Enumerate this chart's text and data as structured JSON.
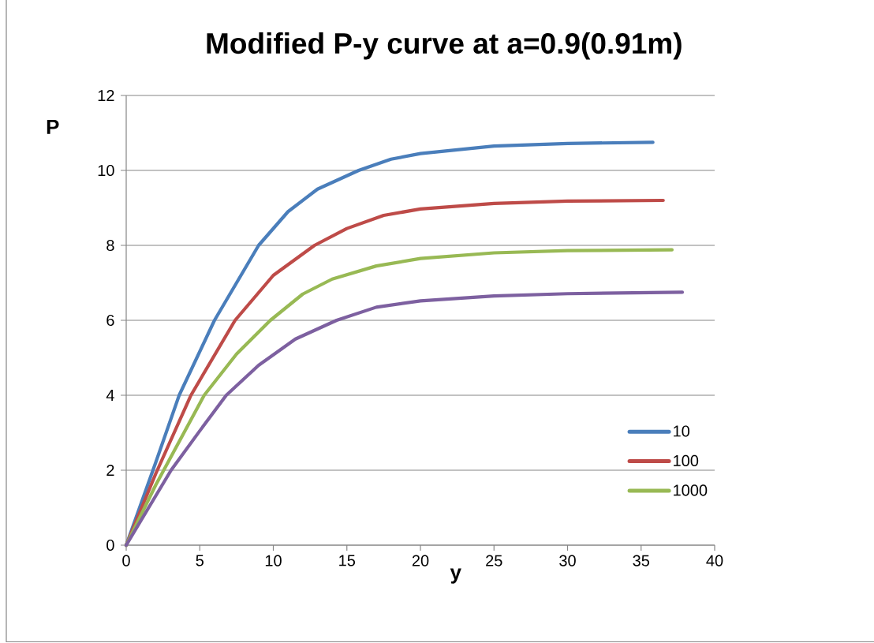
{
  "chart_data": {
    "type": "line",
    "title": "Modified P-y curve at a=0.9(0.91m)",
    "xlabel": "y",
    "ylabel": "P",
    "xlim": [
      0,
      40
    ],
    "xticks": [
      0,
      5,
      10,
      15,
      20,
      25,
      30,
      35,
      40
    ],
    "ylim": [
      0,
      12
    ],
    "yticks": [
      0,
      2,
      4,
      6,
      8,
      10,
      12
    ],
    "grid": "y",
    "legend": "bottom right",
    "marker": "none",
    "line_style": "solid",
    "series": [
      {
        "name": "10",
        "color": "#4a7ebb",
        "x": [
          0,
          2,
          3.6,
          6,
          9,
          11,
          13,
          15.8,
          18,
          20,
          25,
          30,
          35.8
        ],
        "values": [
          0,
          2.2,
          4,
          6,
          8,
          8.9,
          9.5,
          10,
          10.3,
          10.45,
          10.65,
          10.72,
          10.75
        ]
      },
      {
        "name": "100",
        "color": "#be4b48",
        "x": [
          0,
          2,
          4.4,
          7.4,
          10,
          12.8,
          15,
          17.5,
          20,
          25,
          30,
          36.5
        ],
        "values": [
          0,
          1.9,
          4,
          6,
          7.2,
          8,
          8.45,
          8.8,
          8.97,
          9.12,
          9.18,
          9.2
        ]
      },
      {
        "name": "1000",
        "color": "#98b954",
        "x": [
          0,
          2,
          5.3,
          7.5,
          9.8,
          12,
          14,
          17,
          20,
          25,
          30,
          37.1
        ],
        "values": [
          0,
          1.6,
          4,
          5.1,
          6,
          6.7,
          7.1,
          7.45,
          7.65,
          7.8,
          7.86,
          7.88
        ]
      },
      {
        "color": "#7d60a0",
        "x": [
          0,
          3.05,
          5,
          6.8,
          9,
          11.5,
          14.3,
          17,
          20,
          25,
          30,
          37.8
        ],
        "values": [
          0,
          2,
          3.05,
          4,
          4.8,
          5.5,
          6,
          6.35,
          6.52,
          6.65,
          6.71,
          6.75
        ]
      }
    ]
  }
}
